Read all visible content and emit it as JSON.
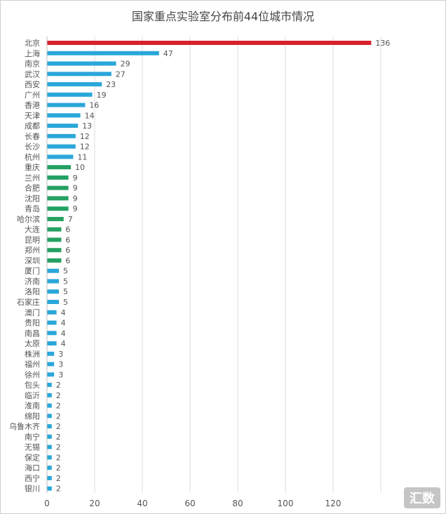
{
  "chart_data": {
    "type": "bar",
    "orientation": "horizontal",
    "title": "国家重点实验室分布前44位城市情况",
    "xlabel": "",
    "ylabel": "",
    "xlim": [
      0,
      140
    ],
    "x_ticks": [
      0,
      20,
      40,
      60,
      80,
      100,
      120
    ],
    "grid": "vertical",
    "legend": "none",
    "colors": {
      "red": "#d9212b",
      "blue": "#2aa7d9",
      "green": "#24a162",
      "label": "#555555",
      "grid": "#dedede"
    },
    "categories": [
      "北京",
      "上海",
      "南京",
      "武汉",
      "西安",
      "广州",
      "香港",
      "天津",
      "成都",
      "长春",
      "长沙",
      "杭州",
      "重庆",
      "兰州",
      "合肥",
      "沈阳",
      "青岛",
      "哈尔滨",
      "大连",
      "昆明",
      "郑州",
      "深圳",
      "厦门",
      "济南",
      "洛阳",
      "石家庄",
      "澳门",
      "贵阳",
      "南昌",
      "太原",
      "株洲",
      "福州",
      "徐州",
      "包头",
      "临沂",
      "淮南",
      "绵阳",
      "乌鲁木齐",
      "南宁",
      "无锡",
      "保定",
      "海口",
      "西宁",
      "银川"
    ],
    "values": [
      136,
      47,
      29,
      27,
      23,
      19,
      16,
      14,
      13,
      12,
      12,
      11,
      10,
      9,
      9,
      9,
      9,
      7,
      6,
      6,
      6,
      6,
      5,
      5,
      5,
      5,
      4,
      4,
      4,
      4,
      3,
      3,
      3,
      2,
      2,
      2,
      2,
      2,
      2,
      2,
      2,
      2,
      2,
      2
    ],
    "bar_colors": [
      "red",
      "blue",
      "blue",
      "blue",
      "blue",
      "blue",
      "blue",
      "blue",
      "blue",
      "blue",
      "blue",
      "blue",
      "green",
      "green",
      "green",
      "green",
      "green",
      "green",
      "green",
      "green",
      "green",
      "green",
      "blue",
      "blue",
      "blue",
      "blue",
      "blue",
      "blue",
      "blue",
      "blue",
      "blue",
      "blue",
      "blue",
      "blue",
      "blue",
      "blue",
      "blue",
      "blue",
      "blue",
      "blue",
      "blue",
      "blue",
      "blue",
      "blue"
    ]
  },
  "watermark": "汇数"
}
